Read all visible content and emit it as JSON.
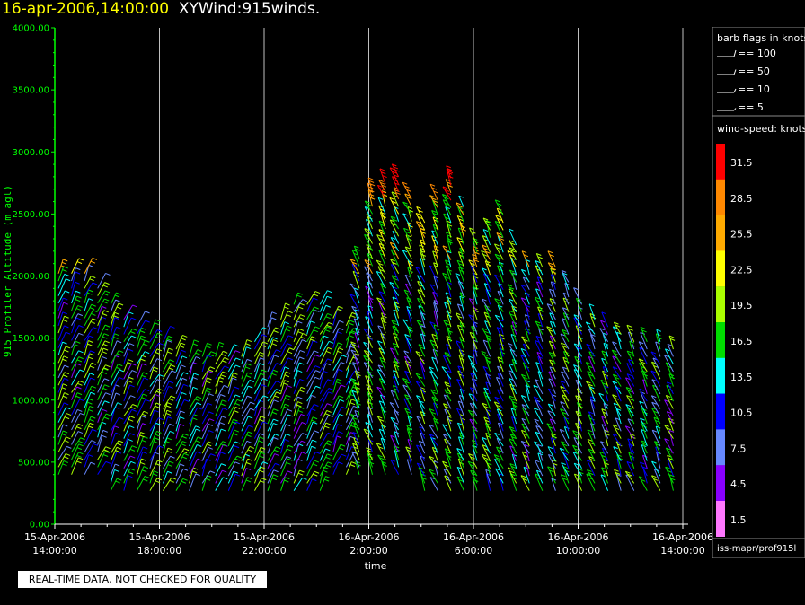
{
  "header": {
    "datetime": "16-apr-2006,14:00:00",
    "product": "XYWind:915winds."
  },
  "footer": {
    "quality_note": "REAL-TIME DATA, NOT CHECKED FOR QUALITY"
  },
  "legend": {
    "barb_title": "barb flags in knots",
    "barb_entries": [
      "== 100",
      "== 50",
      "== 10",
      "== 5"
    ],
    "speed_title": "wind-speed: knots",
    "speed_bins": [
      {
        "label": "31.5",
        "color": "#ff0000"
      },
      {
        "label": "28.5",
        "color": "#ff8800"
      },
      {
        "label": "25.5",
        "color": "#ffaa00"
      },
      {
        "label": "22.5",
        "color": "#ffff00"
      },
      {
        "label": "19.5",
        "color": "#aaff00"
      },
      {
        "label": "16.5",
        "color": "#00dd00"
      },
      {
        "label": "13.5",
        "color": "#00ffff"
      },
      {
        "label": "10.5",
        "color": "#0000ff"
      },
      {
        "label": "7.5",
        "color": "#6688ff"
      },
      {
        "label": "4.5",
        "color": "#8800ff"
      },
      {
        "label": "1.5",
        "color": "#ff77ff"
      }
    ],
    "source": "iss-mapr/prof915l"
  },
  "chart_data": {
    "type": "scatter",
    "title": "16-apr-2006,14:00:00  XYWind:915winds.",
    "xlabel": "time",
    "ylabel": "915 Profiler Altitude (m agl)",
    "ylim": [
      0,
      4000
    ],
    "y_ticks": [
      "0.00",
      "500.00",
      "1000.00",
      "1500.00",
      "2000.00",
      "2500.00",
      "3000.00",
      "3500.00",
      "4000.00"
    ],
    "x_ticks": [
      {
        "line1": "15-Apr-2006",
        "line2": "14:00:00"
      },
      {
        "line1": "15-Apr-2006",
        "line2": "18:00:00"
      },
      {
        "line1": "15-Apr-2006",
        "line2": "22:00:00"
      },
      {
        "line1": "16-Apr-2006",
        "line2": "2:00:00"
      },
      {
        "line1": "16-Apr-2006",
        "line2": "6:00:00"
      },
      {
        "line1": "16-Apr-2006",
        "line2": "10:00:00"
      },
      {
        "line1": "16-Apr-2006",
        "line2": "14:00:00"
      }
    ],
    "grid": "vertical",
    "colors": {
      "axis": "#00ff00",
      "grid": "#ffffff"
    },
    "series": [
      {
        "max_alt_by_hour": [
          2050,
          2050,
          1800,
          1600,
          1500,
          1400,
          1400,
          1400,
          1600,
          1800,
          1800,
          1600,
          2700,
          2800,
          2450,
          2800,
          2300,
          2500,
          2100,
          2100,
          1800,
          1600,
          1500,
          1500,
          1350
        ]
      }
    ],
    "min_alt": 270,
    "note": "wind barbs drawn for each half-hour profile"
  }
}
